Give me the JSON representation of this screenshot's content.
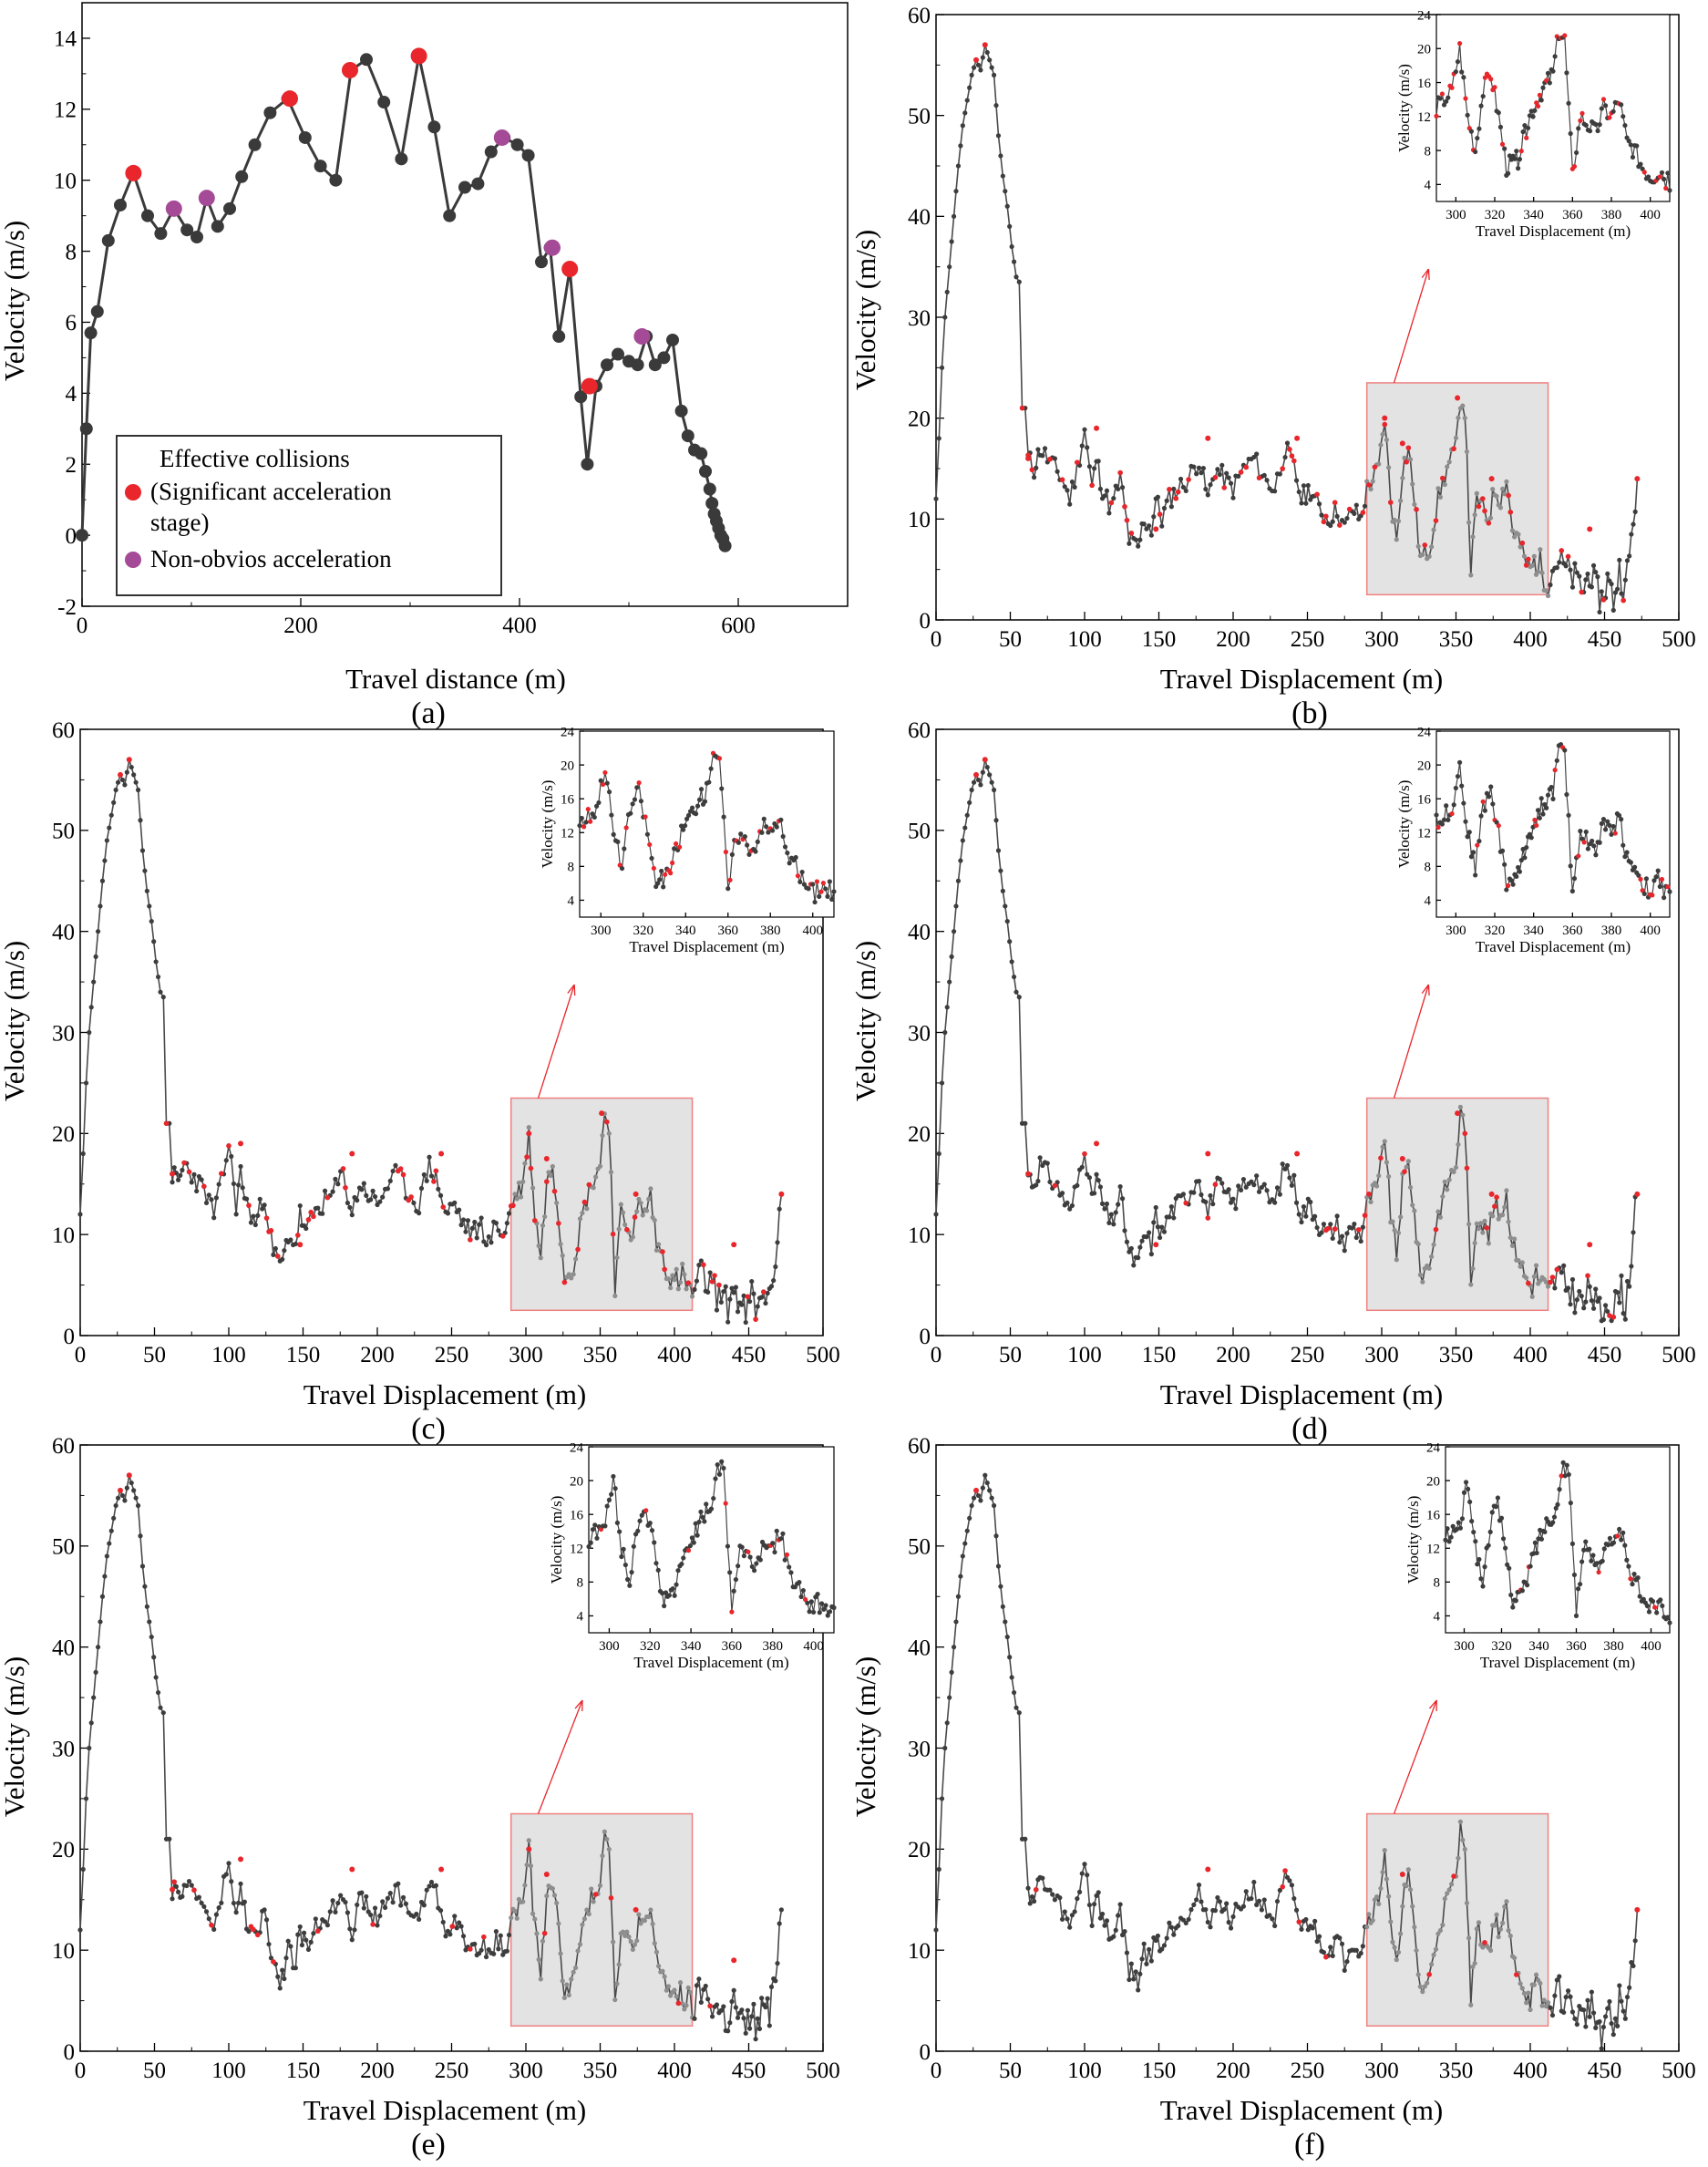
{
  "figure": {
    "panels": [
      {
        "id": "a",
        "label": "(a)",
        "xlabel": "Travel distance (m)",
        "ylabel": "Velocity (m/s)"
      },
      {
        "id": "b",
        "label": "(b)",
        "xlabel": "Travel Displacement (m)",
        "ylabel": "Velocity (m/s)"
      },
      {
        "id": "c",
        "label": "(c)",
        "xlabel": "Travel Displacement (m)",
        "ylabel": "Velocity (m/s)"
      },
      {
        "id": "d",
        "label": "(d)",
        "xlabel": "Travel Displacement (m)",
        "ylabel": "Velocity (m/s)"
      },
      {
        "id": "e",
        "label": "(e)",
        "xlabel": "Travel Displacement (m)",
        "ylabel": "Velocity (m/s)"
      },
      {
        "id": "f",
        "label": "(f)",
        "xlabel": "Travel Displacement (m)",
        "ylabel": "Velocity (m/s)"
      }
    ],
    "legend": {
      "line1": "Effective collisions",
      "line2": "(Significant acceleration",
      "line3": "stage)",
      "line4": "Non-obvios acceleration"
    },
    "inset": {
      "xlabel": "Travel Displacement (m)",
      "ylabel": "Velocity (m/s)"
    }
  },
  "chart_data": [
    {
      "panel": "a",
      "type": "scatter",
      "xlabel": "Travel distance (m)",
      "ylabel": "Velocity (m/s)",
      "xlim": [
        0,
        700
      ],
      "ylim": [
        -2,
        15
      ],
      "xticks": [
        0,
        200,
        400,
        600
      ],
      "yticks": [
        -2,
        0,
        2,
        4,
        6,
        8,
        10,
        12,
        14
      ],
      "legend_position": "bottom-left",
      "colors": {
        "line": "#3a3a3a",
        "effective": "#e8262b",
        "non_obvious": "#a54a96"
      },
      "series": [
        {
          "name": "Trajectory",
          "x": [
            0,
            4,
            8,
            14,
            24,
            35,
            47,
            60,
            72,
            84,
            96,
            105,
            114,
            124,
            135,
            146,
            158,
            172,
            188,
            204,
            218,
            232,
            246,
            260,
            276,
            292,
            308,
            322,
            336,
            350,
            362,
            374,
            386,
            398,
            408,
            420,
            428,
            436,
            446,
            456,
            462,
            470,
            480,
            490,
            500,
            508,
            516,
            524,
            532,
            540,
            548,
            554,
            560,
            566,
            570,
            574,
            576,
            578,
            580,
            582,
            584,
            586,
            588
          ],
          "y": [
            0,
            3,
            5.7,
            6.3,
            8.3,
            9.3,
            10.2,
            9.0,
            8.5,
            9.2,
            8.6,
            8.4,
            9.5,
            8.7,
            9.2,
            10.1,
            11.0,
            11.9,
            12.3,
            11.2,
            10.4,
            10.0,
            13.1,
            13.4,
            12.2,
            10.6,
            13.5,
            11.5,
            9.0,
            9.8,
            9.9,
            10.8,
            11.2,
            11.0,
            10.7,
            7.7,
            8.1,
            5.6,
            7.5,
            3.9,
            2.0,
            4.2,
            4.8,
            5.1,
            4.9,
            4.8,
            5.6,
            4.8,
            5.0,
            5.5,
            3.5,
            2.8,
            2.4,
            2.3,
            1.8,
            1.3,
            0.9,
            0.6,
            0.4,
            0.2,
            0.0,
            -0.1,
            -0.3
          ]
        },
        {
          "name": "Effective collisions (Significant acceleration stage)",
          "x": [
            47,
            190,
            245,
            308,
            446,
            464
          ],
          "y": [
            10.2,
            12.3,
            13.1,
            13.5,
            7.5,
            4.2
          ]
        },
        {
          "name": "Non-obvios acceleration",
          "x": [
            84,
            114,
            384,
            430,
            512
          ],
          "y": [
            9.2,
            9.5,
            11.2,
            8.1,
            5.6
          ]
        }
      ]
    },
    {
      "panel": "b-f",
      "type": "line",
      "xlabel": "Travel Displacement (m)",
      "ylabel": "Velocity (m/s)",
      "xlim": [
        0,
        500
      ],
      "ylim": [
        0,
        60
      ],
      "xticks": [
        0,
        50,
        100,
        150,
        200,
        250,
        300,
        350,
        400,
        450,
        500
      ],
      "yticks": [
        0,
        10,
        20,
        30,
        40,
        50,
        60
      ],
      "highlight_box": {
        "x": [
          290,
          412
        ],
        "y": [
          2.5,
          23.5
        ]
      },
      "inset": {
        "xlim": [
          290,
          410
        ],
        "ylim": [
          2,
          24
        ],
        "xticks": [
          300,
          320,
          340,
          360,
          380,
          400
        ],
        "yticks": [
          4,
          8,
          12,
          16,
          20,
          24
        ]
      },
      "series": [
        {
          "name": "Velocity",
          "x": [
            0,
            2,
            4,
            6,
            9,
            12,
            15,
            18,
            21,
            24,
            27,
            30,
            33,
            36,
            39,
            42,
            45,
            48,
            51,
            54,
            56,
            58,
            60,
            62,
            66,
            70,
            75,
            80,
            85,
            90,
            95,
            100,
            105,
            108,
            112,
            118,
            124,
            130,
            136,
            140,
            145,
            148,
            152,
            157,
            163,
            170,
            177,
            183,
            188,
            194,
            200,
            207,
            214,
            221,
            228,
            235,
            241,
            246,
            252,
            258,
            264,
            270,
            275,
            280,
            286,
            290,
            294,
            298,
            302,
            306,
            310,
            314,
            318,
            322,
            326,
            332,
            338,
            344,
            350,
            353,
            356,
            360,
            364,
            368,
            372,
            376,
            380,
            384,
            388,
            392,
            396,
            400,
            404,
            408,
            412,
            418,
            424,
            430,
            436,
            440,
            444,
            448,
            452,
            456,
            460,
            464,
            468,
            472
          ],
          "y": [
            12,
            18,
            25,
            30,
            35,
            40,
            45,
            49,
            51.5,
            54,
            55.5,
            54.5,
            57,
            55.5,
            54,
            48,
            44,
            41,
            37,
            34,
            33.5,
            21,
            21,
            16,
            15,
            17,
            16,
            15,
            14,
            12,
            15,
            19,
            13,
            16,
            13,
            11,
            14,
            8,
            7,
            10,
            9,
            12,
            10,
            12,
            13,
            14,
            16,
            12,
            15,
            14,
            13,
            15,
            16,
            14,
            13,
            17,
            15,
            12,
            13,
            11,
            10,
            11,
            9,
            11,
            10,
            13,
            14,
            15,
            20,
            12,
            8,
            15,
            17,
            12,
            6,
            7,
            12,
            15,
            17,
            22,
            21,
            5,
            12,
            11,
            10,
            13,
            12,
            14,
            9,
            8,
            6,
            5,
            6,
            5,
            4,
            6,
            5,
            4,
            3,
            5,
            3,
            2,
            4,
            2,
            5,
            3,
            8,
            14
          ]
        },
        {
          "name": "Peaks",
          "x": [
            27,
            33,
            62,
            108,
            148,
            183,
            243,
            302,
            314,
            351,
            374,
            440,
            472
          ],
          "y": [
            55.5,
            57,
            16,
            19,
            9,
            18,
            18,
            20,
            17.5,
            22,
            14,
            9,
            14
          ]
        }
      ]
    }
  ]
}
